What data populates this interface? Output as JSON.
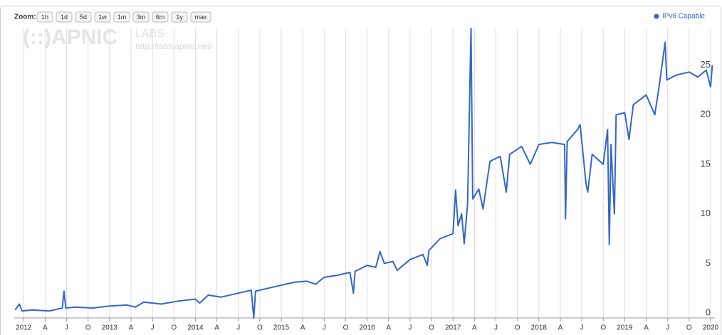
{
  "chart_data": {
    "type": "line",
    "zoom_label": "Zoom:",
    "zoom_buttons": [
      "1h",
      "1d",
      "5d",
      "1w",
      "1m",
      "3m",
      "6m",
      "1y",
      "max"
    ],
    "watermark": {
      "brand": "(::)APNIC",
      "sub": "LABS",
      "url": "http://labs.apnic.net/"
    },
    "legend_position": "top-right",
    "grid": true,
    "xlim": [
      2011.89,
      2020.05
    ],
    "ylim": [
      -0.5,
      28.7
    ],
    "yticks": [
      0,
      5,
      10,
      15,
      20,
      25
    ],
    "xticks": [
      {
        "value": 2012,
        "label": "2012"
      },
      {
        "value": 2012.25,
        "label": "A"
      },
      {
        "value": 2012.5,
        "label": "J"
      },
      {
        "value": 2012.75,
        "label": "O"
      },
      {
        "value": 2013,
        "label": "2013"
      },
      {
        "value": 2013.25,
        "label": "A"
      },
      {
        "value": 2013.5,
        "label": "J"
      },
      {
        "value": 2013.75,
        "label": "O"
      },
      {
        "value": 2014,
        "label": "2014"
      },
      {
        "value": 2014.25,
        "label": "A"
      },
      {
        "value": 2014.5,
        "label": "J"
      },
      {
        "value": 2014.75,
        "label": "O"
      },
      {
        "value": 2015,
        "label": "2015"
      },
      {
        "value": 2015.25,
        "label": "A"
      },
      {
        "value": 2015.5,
        "label": "J"
      },
      {
        "value": 2015.75,
        "label": "O"
      },
      {
        "value": 2016,
        "label": "2016"
      },
      {
        "value": 2016.25,
        "label": "A"
      },
      {
        "value": 2016.5,
        "label": "J"
      },
      {
        "value": 2016.75,
        "label": "O"
      },
      {
        "value": 2017,
        "label": "2017"
      },
      {
        "value": 2017.25,
        "label": "A"
      },
      {
        "value": 2017.5,
        "label": "J"
      },
      {
        "value": 2017.75,
        "label": "O"
      },
      {
        "value": 2018,
        "label": "2018"
      },
      {
        "value": 2018.25,
        "label": "A"
      },
      {
        "value": 2018.5,
        "label": "J"
      },
      {
        "value": 2018.75,
        "label": "O"
      },
      {
        "value": 2019,
        "label": "2019"
      },
      {
        "value": 2019.25,
        "label": "A"
      },
      {
        "value": 2019.5,
        "label": "J"
      },
      {
        "value": 2019.75,
        "label": "O"
      },
      {
        "value": 2020,
        "label": "2020"
      }
    ],
    "x": [
      2011.9,
      2011.95,
      2011.98,
      2012.1,
      2012.3,
      2012.45,
      2012.47,
      2012.49,
      2012.6,
      2012.8,
      2013.0,
      2013.2,
      2013.3,
      2013.4,
      2013.6,
      2013.8,
      2014.0,
      2014.05,
      2014.15,
      2014.3,
      2014.5,
      2014.65,
      2014.68,
      2014.7,
      2014.85,
      2015.0,
      2015.15,
      2015.3,
      2015.4,
      2015.5,
      2015.65,
      2015.8,
      2015.84,
      2015.86,
      2016.0,
      2016.1,
      2016.15,
      2016.2,
      2016.3,
      2016.35,
      2016.5,
      2016.65,
      2016.7,
      2016.72,
      2016.85,
      2017.0,
      2017.03,
      2017.06,
      2017.1,
      2017.13,
      2017.17,
      2017.21,
      2017.23,
      2017.3,
      2017.35,
      2017.43,
      2017.55,
      2017.62,
      2017.66,
      2017.8,
      2017.9,
      2018.0,
      2018.15,
      2018.3,
      2018.31,
      2018.33,
      2018.45,
      2018.48,
      2018.55,
      2018.57,
      2018.62,
      2018.75,
      2018.8,
      2018.82,
      2018.84,
      2018.88,
      2018.9,
      2019.0,
      2019.05,
      2019.1,
      2019.25,
      2019.35,
      2019.4,
      2019.47,
      2019.49,
      2019.6,
      2019.75,
      2019.85,
      2019.95,
      2020.0,
      2020.02
    ],
    "series": [
      {
        "name": "IPv6 Capable",
        "color": "#3366cc",
        "values": [
          0.3,
          0.9,
          0.2,
          0.3,
          0.2,
          0.5,
          2.2,
          0.5,
          0.6,
          0.5,
          0.7,
          0.8,
          0.6,
          1.1,
          0.9,
          1.2,
          1.4,
          1.0,
          1.8,
          1.6,
          2.0,
          2.3,
          -0.5,
          2.2,
          2.5,
          2.8,
          3.1,
          3.2,
          2.9,
          3.6,
          3.8,
          4.1,
          2.0,
          4.2,
          4.8,
          4.6,
          6.2,
          5.0,
          5.2,
          4.3,
          5.4,
          5.9,
          4.8,
          6.3,
          7.5,
          8.0,
          12.4,
          8.8,
          10.0,
          7.0,
          11.0,
          28.7,
          11.5,
          12.5,
          10.5,
          15.3,
          15.8,
          12.2,
          16.0,
          16.8,
          15.0,
          17.0,
          17.2,
          17.0,
          9.5,
          17.3,
          18.5,
          19.0,
          13.0,
          12.2,
          16.0,
          15.0,
          18.5,
          6.9,
          17.0,
          10.0,
          20.0,
          20.2,
          17.5,
          21.0,
          22.0,
          20.0,
          22.8,
          27.3,
          23.5,
          24.0,
          24.3,
          23.8,
          24.5,
          22.8,
          25.0
        ]
      }
    ]
  }
}
